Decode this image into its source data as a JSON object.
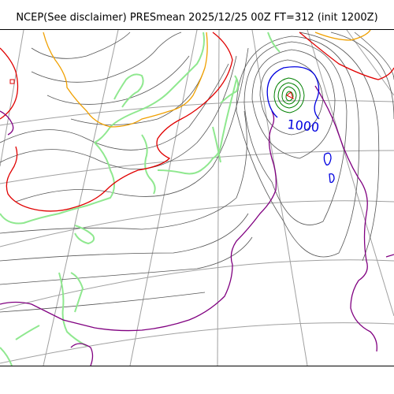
{
  "title": "NCEP(See disclaimer) PRESmean 2025/12/25 00Z FT=312 (init 1200Z)",
  "map": {
    "contour_label": "1000",
    "colors": {
      "graticule": "#a0a0a0",
      "isobar": "#555555",
      "coastline": "#8fe88f",
      "contour_red": "#e00000",
      "contour_orange": "#f0a000",
      "contour_blue": "#0000e0",
      "contour_purple": "#800080",
      "contour_green": "#008000"
    }
  }
}
